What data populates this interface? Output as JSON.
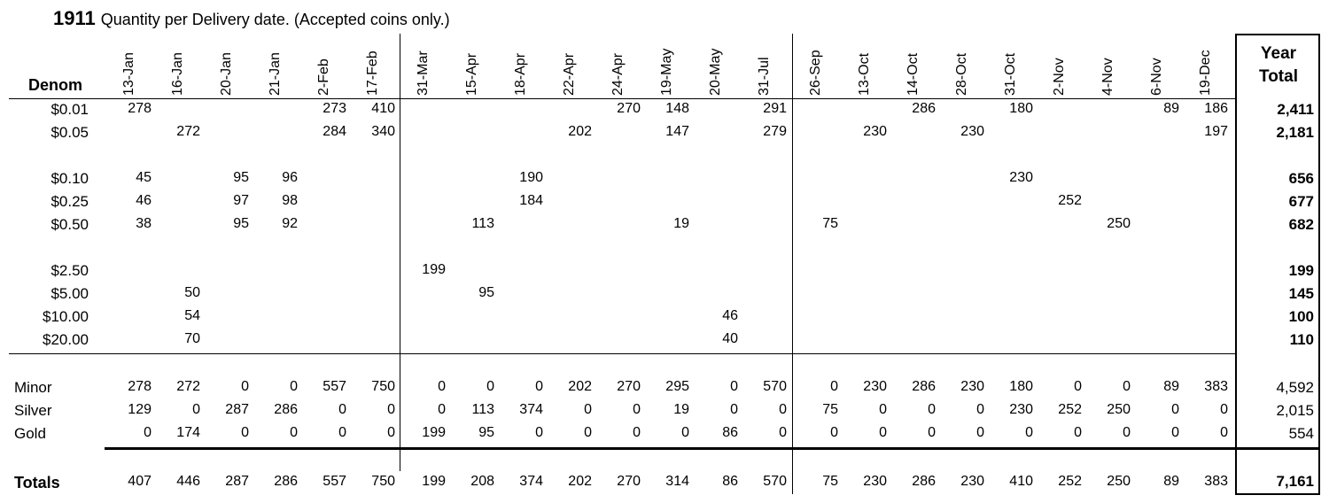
{
  "title": {
    "year": "1911",
    "text": "Quantity per Delivery date. (Accepted coins only.)"
  },
  "header": {
    "denom": "Denom",
    "year_total_line1": "Year",
    "year_total_line2": "Total"
  },
  "dates": [
    "13-Jan",
    "16-Jan",
    "20-Jan",
    "21-Jan",
    "2-Feb",
    "17-Feb",
    "31-Mar",
    "15-Apr",
    "18-Apr",
    "22-Apr",
    "24-Apr",
    "19-May",
    "20-May",
    "31-Jul",
    "26-Sep",
    "13-Oct",
    "14-Oct",
    "28-Oct",
    "31-Oct",
    "2-Nov",
    "4-Nov",
    "6-Nov",
    "19-Dec"
  ],
  "rows": [
    {
      "label": "$0.01",
      "cells": [
        "278",
        "",
        "",
        "",
        "273",
        "410",
        "",
        "",
        "",
        "",
        "270",
        "148",
        "",
        "291",
        "",
        "",
        "286",
        "",
        "180",
        "",
        "",
        "89",
        "186"
      ],
      "total": "2,411"
    },
    {
      "label": "$0.05",
      "cells": [
        "",
        "272",
        "",
        "",
        "284",
        "340",
        "",
        "",
        "",
        "202",
        "",
        "147",
        "",
        "279",
        "",
        "230",
        "",
        "230",
        "",
        "",
        "",
        "",
        "197"
      ],
      "total": "2,181"
    },
    {
      "label": "$0.10",
      "cells": [
        "45",
        "",
        "95",
        "96",
        "",
        "",
        "",
        "",
        "190",
        "",
        "",
        "",
        "",
        "",
        "",
        "",
        "",
        "",
        "230",
        "",
        "",
        "",
        ""
      ],
      "total": "656"
    },
    {
      "label": "$0.25",
      "cells": [
        "46",
        "",
        "97",
        "98",
        "",
        "",
        "",
        "",
        "184",
        "",
        "",
        "",
        "",
        "",
        "",
        "",
        "",
        "",
        "",
        "252",
        "",
        "",
        ""
      ],
      "total": "677"
    },
    {
      "label": "$0.50",
      "cells": [
        "38",
        "",
        "95",
        "92",
        "",
        "",
        "",
        "113",
        "",
        "",
        "",
        "19",
        "",
        "",
        "75",
        "",
        "",
        "",
        "",
        "",
        "250",
        "",
        ""
      ],
      "total": "682"
    },
    {
      "label": "$2.50",
      "cells": [
        "",
        "",
        "",
        "",
        "",
        "",
        "199",
        "",
        "",
        "",
        "",
        "",
        "",
        "",
        "",
        "",
        "",
        "",
        "",
        "",
        "",
        "",
        ""
      ],
      "total": "199"
    },
    {
      "label": "$5.00",
      "cells": [
        "",
        "50",
        "",
        "",
        "",
        "",
        "",
        "95",
        "",
        "",
        "",
        "",
        "",
        "",
        "",
        "",
        "",
        "",
        "",
        "",
        "",
        "",
        ""
      ],
      "total": "145"
    },
    {
      "label": "$10.00",
      "cells": [
        "",
        "54",
        "",
        "",
        "",
        "",
        "",
        "",
        "",
        "",
        "",
        "",
        "46",
        "",
        "",
        "",
        "",
        "",
        "",
        "",
        "",
        "",
        ""
      ],
      "total": "100"
    },
    {
      "label": "$20.00",
      "cells": [
        "",
        "70",
        "",
        "",
        "",
        "",
        "",
        "",
        "",
        "",
        "",
        "",
        "40",
        "",
        "",
        "",
        "",
        "",
        "",
        "",
        "",
        "",
        ""
      ],
      "total": "110"
    }
  ],
  "groups": [
    {
      "label": "Minor",
      "cells": [
        "278",
        "272",
        "0",
        "0",
        "557",
        "750",
        "0",
        "0",
        "0",
        "202",
        "270",
        "295",
        "0",
        "570",
        "0",
        "230",
        "286",
        "230",
        "180",
        "0",
        "0",
        "89",
        "383"
      ],
      "total": "4,592"
    },
    {
      "label": "Silver",
      "cells": [
        "129",
        "0",
        "287",
        "286",
        "0",
        "0",
        "0",
        "113",
        "374",
        "0",
        "0",
        "19",
        "0",
        "0",
        "75",
        "0",
        "0",
        "0",
        "230",
        "252",
        "250",
        "0",
        "0"
      ],
      "total": "2,015"
    },
    {
      "label": "Gold",
      "cells": [
        "0",
        "174",
        "0",
        "0",
        "0",
        "0",
        "199",
        "95",
        "0",
        "0",
        "0",
        "0",
        "86",
        "0",
        "0",
        "0",
        "0",
        "0",
        "0",
        "0",
        "0",
        "0",
        "0"
      ],
      "total": "554"
    }
  ],
  "totals": {
    "label": "Totals",
    "cells": [
      "407",
      "446",
      "287",
      "286",
      "557",
      "750",
      "199",
      "208",
      "374",
      "202",
      "270",
      "314",
      "86",
      "570",
      "75",
      "230",
      "286",
      "230",
      "410",
      "252",
      "250",
      "89",
      "383"
    ],
    "total": "7,161"
  }
}
